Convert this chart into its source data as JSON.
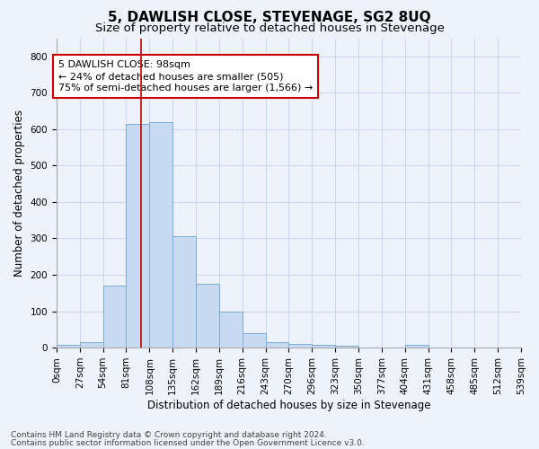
{
  "title": "5, DAWLISH CLOSE, STEVENAGE, SG2 8UQ",
  "subtitle": "Size of property relative to detached houses in Stevenage",
  "xlabel": "Distribution of detached houses by size in Stevenage",
  "ylabel": "Number of detached properties",
  "bin_labels": [
    "0sqm",
    "27sqm",
    "54sqm",
    "81sqm",
    "108sqm",
    "135sqm",
    "162sqm",
    "189sqm",
    "216sqm",
    "243sqm",
    "270sqm",
    "296sqm",
    "323sqm",
    "350sqm",
    "377sqm",
    "404sqm",
    "431sqm",
    "458sqm",
    "485sqm",
    "512sqm",
    "539sqm"
  ],
  "bar_values": [
    8,
    15,
    170,
    615,
    620,
    305,
    175,
    100,
    40,
    15,
    10,
    8,
    5,
    0,
    0,
    8,
    0,
    0,
    0,
    0
  ],
  "bar_color": "#c8daf0",
  "bar_edge_color": "#7aadd4",
  "property_line_x": 98,
  "bin_width": 27,
  "ylim": [
    0,
    850
  ],
  "yticks": [
    0,
    100,
    200,
    300,
    400,
    500,
    600,
    700,
    800
  ],
  "annotation_line1": "5 DAWLISH CLOSE: 98sqm",
  "annotation_line2": "← 24% of detached houses are smaller (505)",
  "annotation_line3": "75% of semi-detached houses are larger (1,566) →",
  "annotation_box_color": "#ffffff",
  "annotation_box_edge_color": "#cc0000",
  "grid_color": "#ccd8ec",
  "footer_line1": "Contains HM Land Registry data © Crown copyright and database right 2024.",
  "footer_line2": "Contains public sector information licensed under the Open Government Licence v3.0.",
  "title_fontsize": 11,
  "subtitle_fontsize": 9.5,
  "axis_label_fontsize": 8.5,
  "tick_fontsize": 7.5,
  "annotation_fontsize": 8,
  "footer_fontsize": 6.5,
  "red_line_color": "#cc0000",
  "background_color": "#eef2fb"
}
